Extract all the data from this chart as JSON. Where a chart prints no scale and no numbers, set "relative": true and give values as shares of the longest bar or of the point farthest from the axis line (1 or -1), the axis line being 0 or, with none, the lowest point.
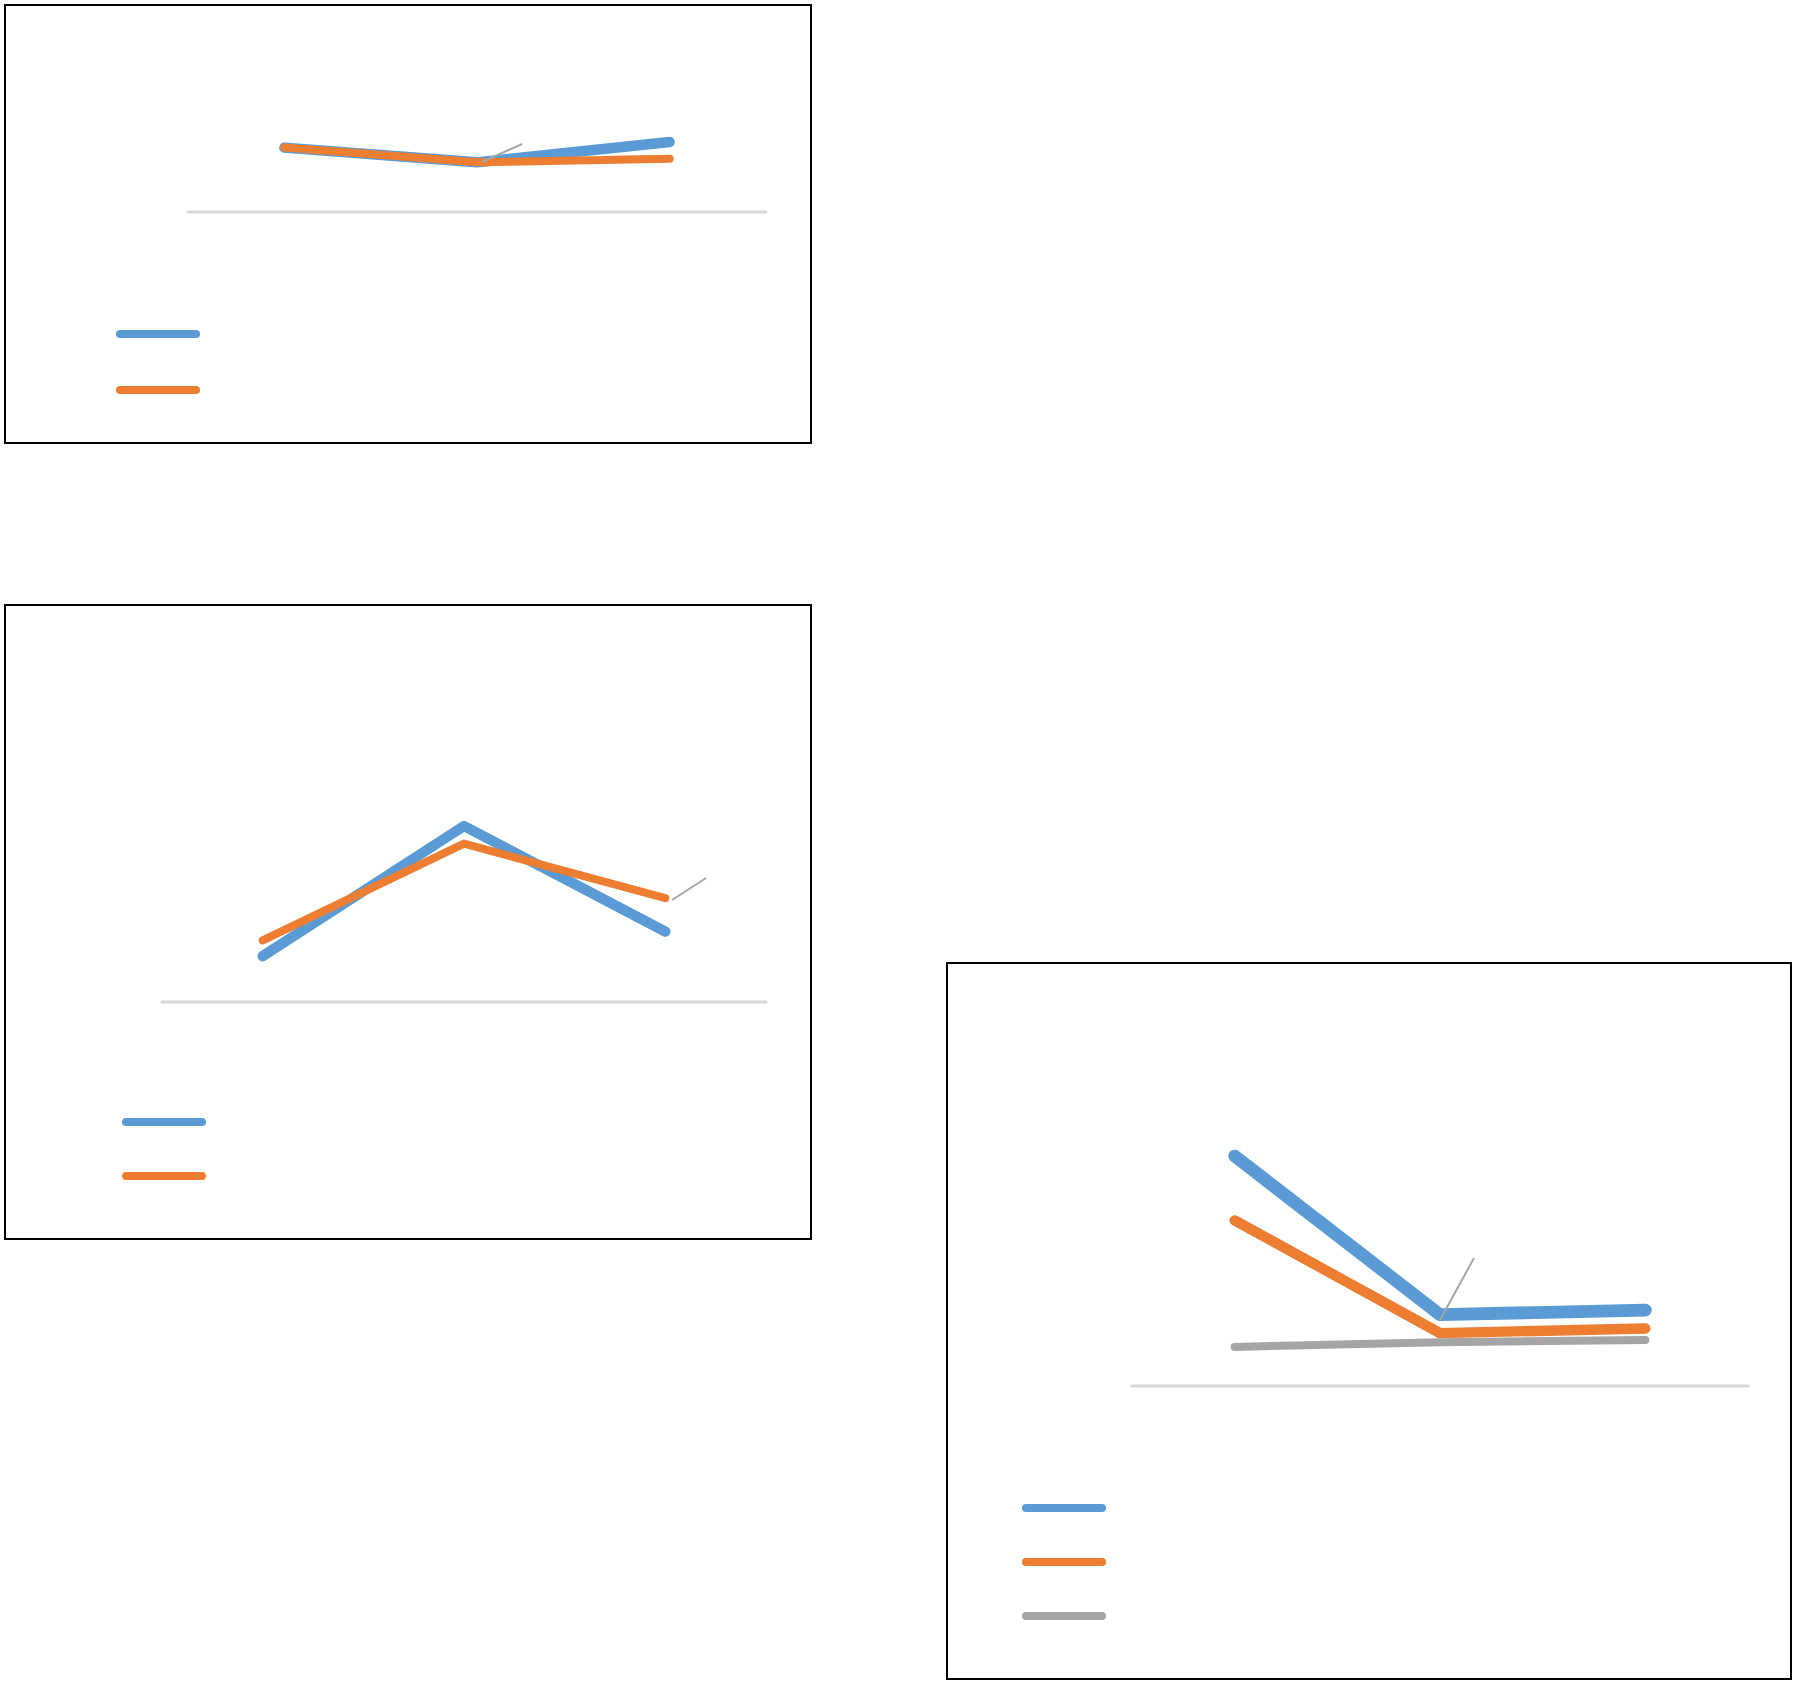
{
  "chart_data": [
    {
      "type": "line",
      "relative": true,
      "categories": [
        null,
        null,
        null
      ],
      "marker": "none",
      "series": [
        {
          "color": "#5b9bd5",
          "values": [
            0.92,
            0.71,
            1
          ]
        },
        {
          "color": "#ed7d31",
          "values": [
            0.92,
            0.71,
            0.76
          ]
        }
      ]
    },
    {
      "type": "line",
      "relative": true,
      "categories": [
        null,
        null,
        null
      ],
      "marker": "none",
      "series": [
        {
          "color": "#5b9bd5",
          "values": [
            0.26,
            1,
            0.4
          ]
        },
        {
          "color": "#ed7d31",
          "values": [
            0.35,
            0.9,
            0.59
          ]
        }
      ]
    },
    {
      "type": "line",
      "relative": true,
      "categories": [
        null,
        null,
        null
      ],
      "marker": "none",
      "series": [
        {
          "color": "#5b9bd5",
          "values": [
            1,
            0.31,
            0.33
          ]
        },
        {
          "color": "#ed7d31",
          "values": [
            0.72,
            0.23,
            0.25
          ]
        },
        {
          "color": "#a5a5a5",
          "values": [
            0.17,
            0.19,
            0.2
          ]
        }
      ]
    }
  ]
}
